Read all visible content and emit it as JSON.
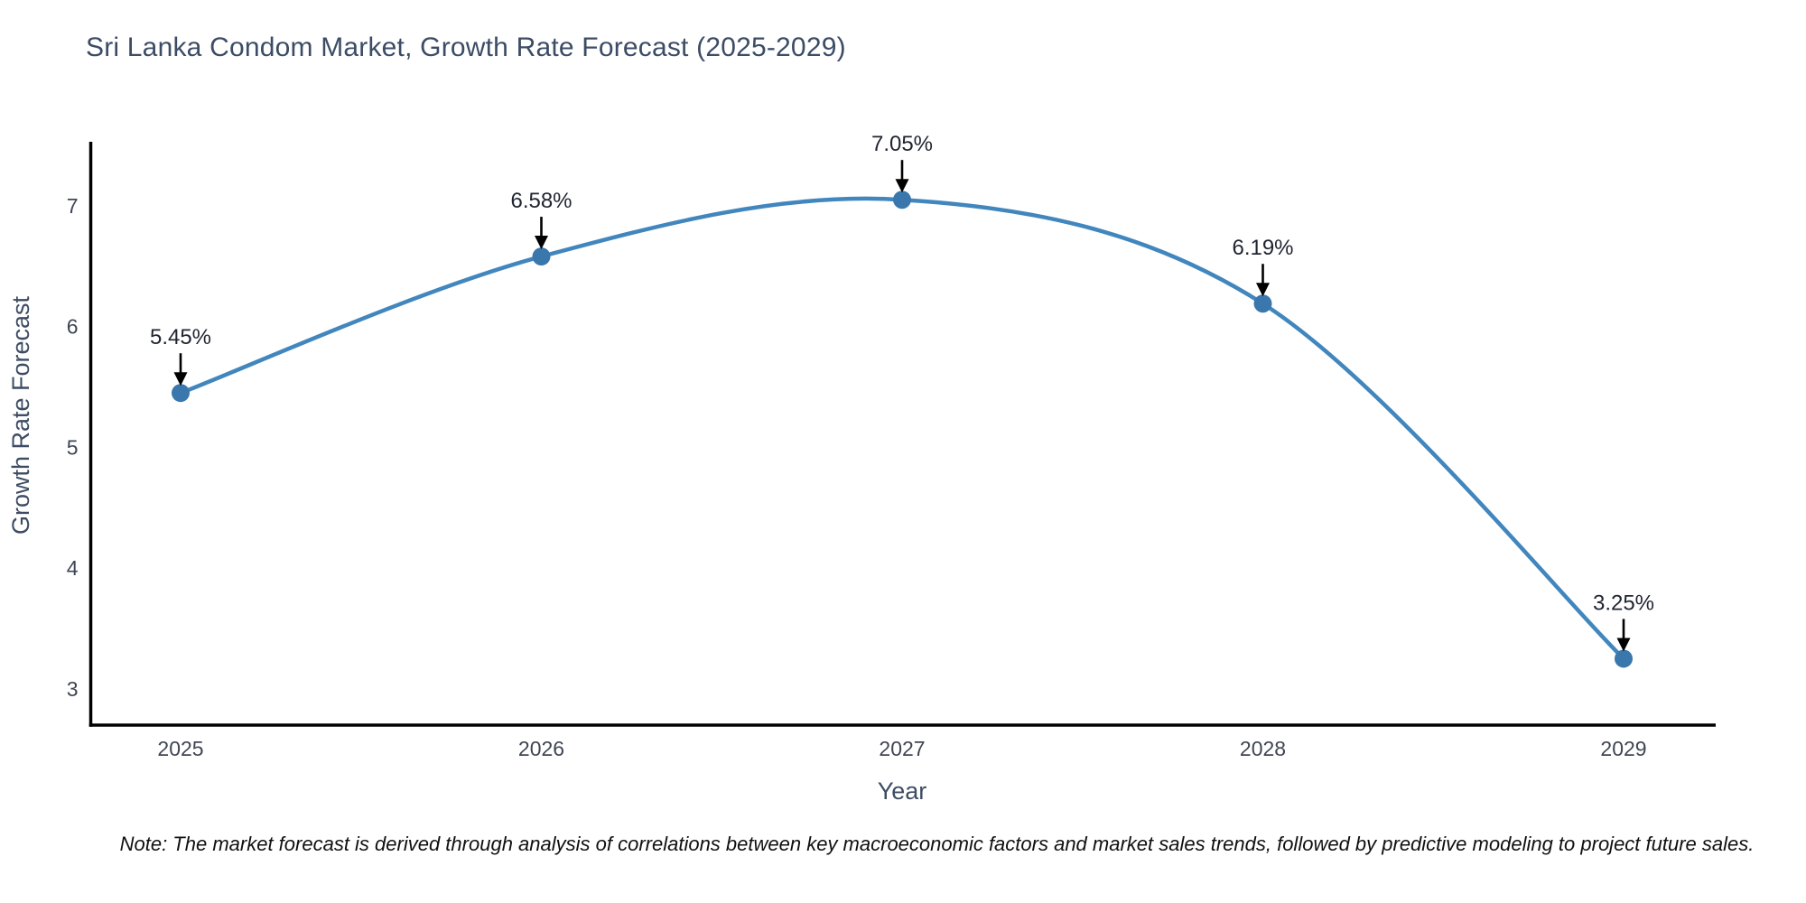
{
  "title": "Sri Lanka Condom Market, Growth Rate Forecast (2025-2029)",
  "note": "Note: The market forecast is derived through analysis of correlations between key macroeconomic factors and market sales trends, followed by predictive modeling to project future sales.",
  "chart_data": {
    "type": "line",
    "title": "Sri Lanka Condom Market, Growth Rate Forecast (2025-2029)",
    "x": [
      2025,
      2026,
      2027,
      2028,
      2029
    ],
    "categories": [
      "2025",
      "2026",
      "2027",
      "2028",
      "2029"
    ],
    "series": [
      {
        "name": "Growth Rate Forecast",
        "values": [
          5.45,
          6.58,
          7.05,
          6.19,
          3.25
        ]
      }
    ],
    "point_labels": [
      "5.45%",
      "6.58%",
      "7.05%",
      "6.19%",
      "3.25%"
    ],
    "xlabel": "Year",
    "ylabel": "Growth Rate Forecast",
    "yticks": [
      3,
      4,
      5,
      6,
      7
    ],
    "ylim": [
      2.7,
      7.53
    ],
    "line_shape": "spline",
    "grid": false,
    "legend_position": "none",
    "annotations_style": "label-with-down-arrow",
    "colors": {
      "line": "#4186bd",
      "marker": "#3a77ad",
      "axis": "#000000",
      "tick_label": "#3f4653",
      "axis_title": "#3d4c63",
      "title": "#3c4c66",
      "annotation_text": "#1f2430",
      "arrow": "#000000",
      "background": "#ffffff"
    }
  }
}
